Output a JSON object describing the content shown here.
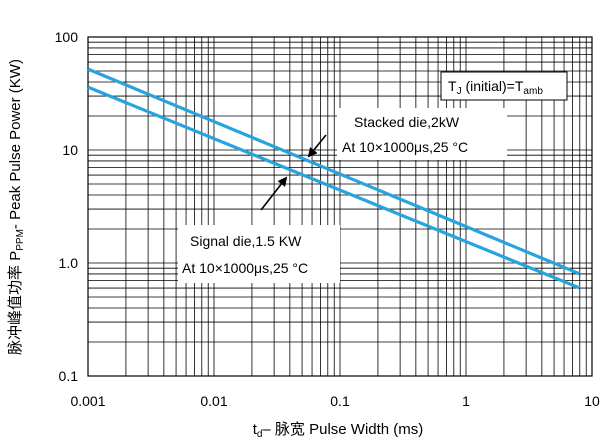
{
  "chart_data": {
    "type": "line",
    "xscale": "log",
    "yscale": "log",
    "xlim": [
      0.001,
      10
    ],
    "ylim": [
      0.1,
      100
    ],
    "x_ticks": [
      "0.001",
      "0.01",
      "0.1",
      "1",
      "10"
    ],
    "y_ticks": [
      "0.1",
      "1.0",
      "10",
      "100"
    ],
    "xlabel": {
      "pre": "t",
      "sub": "d",
      "post": "– 脉宽 Pulse Width (ms)"
    },
    "ylabel": {
      "pre": "脉冲峰值功率 P",
      "sub": "PPM",
      "post": "- Peak Pulse Power (KW)"
    },
    "grid": true,
    "series": [
      {
        "x": [
          0.001,
          8
        ],
        "y": [
          52,
          0.8
        ]
      },
      {
        "x": [
          0.001,
          8
        ],
        "y": [
          36,
          0.6
        ]
      }
    ],
    "annotations": {
      "tj": {
        "t1": "T",
        "s1": "J",
        "t2": " (initial)=T",
        "s2": "amb"
      },
      "stacked": {
        "line1": "Stacked die,2kW",
        "line2": "At 10×1000μs,25 °C"
      },
      "signal": {
        "line1": "Signal die,1.5 KW",
        "line2": "At 10×1000μs,25 °C"
      }
    },
    "colors": {
      "series": "#29a3dc",
      "grid": "#000000"
    }
  }
}
